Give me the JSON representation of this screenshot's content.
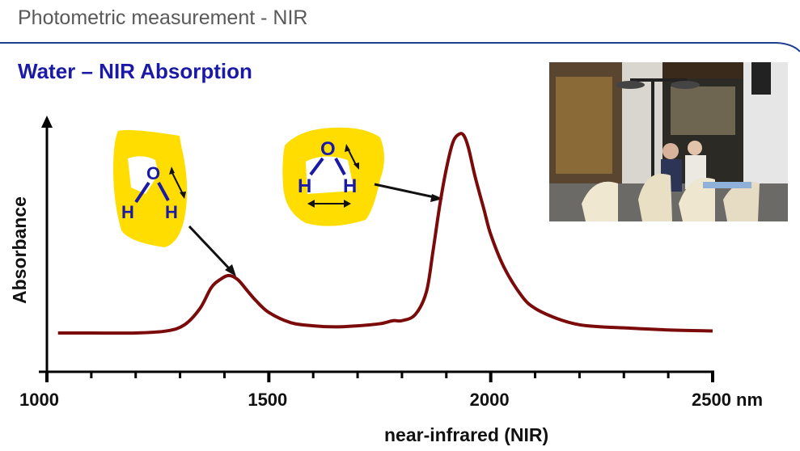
{
  "header": {
    "title": "Photometric measurement - NIR"
  },
  "section": {
    "title": "Water – NIR Absorption"
  },
  "photo": {
    "description_icon": "photo-cafe-terrace-heaters"
  },
  "colors": {
    "curve": "#7b0a0a",
    "title": "#1a1aa6",
    "highlight": "#ffdd00",
    "header_rule": "#1f3f8f"
  },
  "molecules": [
    {
      "o_label": "O",
      "h1_label": "H",
      "h2_label": "H",
      "mode": "bend"
    },
    {
      "o_label": "O",
      "h1_label": "H",
      "h2_label": "H",
      "mode": "stretch"
    }
  ],
  "chart_data": {
    "type": "line",
    "title": "",
    "xlabel": "near-infrared (NIR)",
    "ylabel": "Absorbance",
    "xlim": [
      1000,
      2500
    ],
    "ylim": [
      0,
      1
    ],
    "x_tick_labels": [
      {
        "value": 1000,
        "label": "1000"
      },
      {
        "value": 1500,
        "label": "1500"
      },
      {
        "value": 2000,
        "label": "2000"
      },
      {
        "value": 2500,
        "label": "2500 nm"
      }
    ],
    "x_minor_ticks": [
      1000,
      1100,
      1200,
      1300,
      1400,
      1500,
      1600,
      1700,
      1800,
      1900,
      2000,
      2100,
      2200,
      2300,
      2400,
      2500
    ],
    "grid": false,
    "series": [
      {
        "x": [
          1025,
          1100,
          1200,
          1270,
          1310,
          1345,
          1370,
          1390,
          1410,
          1430,
          1450,
          1470,
          1500,
          1550,
          1600,
          1650,
          1700,
          1750,
          1780,
          1800,
          1830,
          1855,
          1870,
          1885,
          1900,
          1915,
          1930,
          1940,
          1950,
          1965,
          1985,
          2000,
          2030,
          2070,
          2100,
          2150,
          2200,
          2250,
          2300,
          2400,
          2500
        ],
        "y": [
          0.0,
          0.0,
          0.0,
          0.01,
          0.04,
          0.12,
          0.22,
          0.26,
          0.28,
          0.26,
          0.21,
          0.16,
          0.1,
          0.05,
          0.035,
          0.03,
          0.035,
          0.045,
          0.06,
          0.06,
          0.09,
          0.2,
          0.4,
          0.62,
          0.8,
          0.93,
          0.97,
          0.96,
          0.9,
          0.76,
          0.6,
          0.48,
          0.32,
          0.18,
          0.12,
          0.07,
          0.04,
          0.03,
          0.025,
          0.015,
          0.01
        ]
      }
    ]
  }
}
